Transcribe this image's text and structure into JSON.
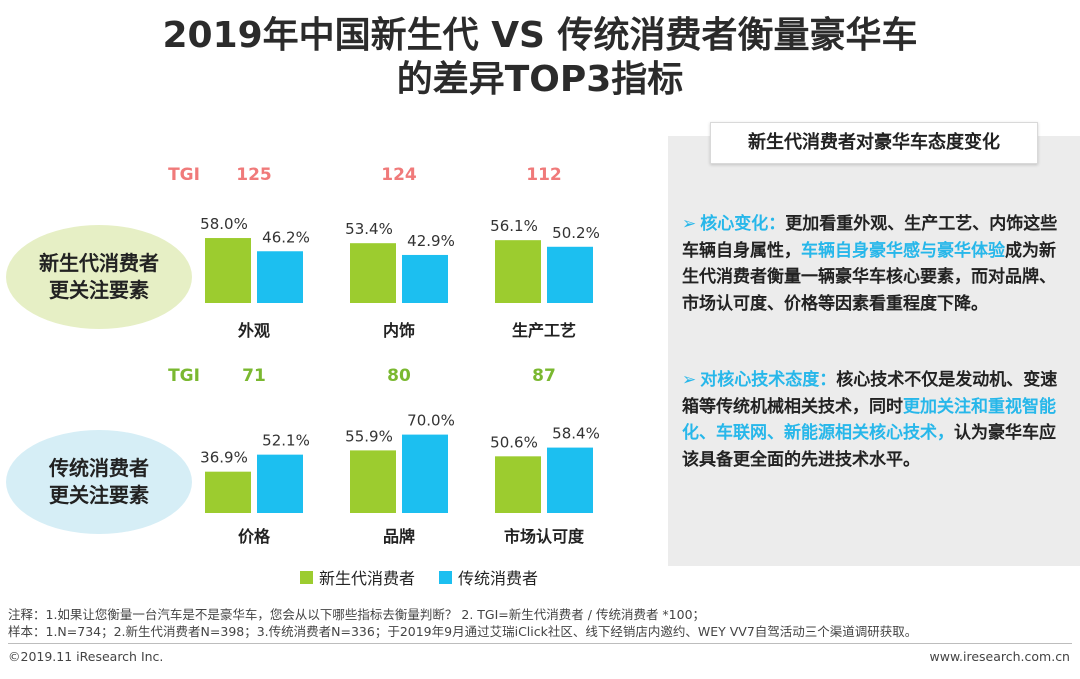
{
  "title": {
    "line1": "2019年中国新生代 VS 传统消费者衡量豪华车",
    "line2": "的差异TOP3指标"
  },
  "row_labels": [
    {
      "line1": "新生代消费者",
      "line2": "更关注要素"
    },
    {
      "line1": "传统消费者",
      "line2": "更关注要素"
    }
  ],
  "colors": {
    "new_gen": "#9ccc2f",
    "traditional": "#1cbff0",
    "tgi_row1": "#f07a7a",
    "tgi_row2": "#7ab830",
    "highlight": "#27b7ea"
  },
  "chart_data": [
    {
      "type": "bar",
      "group": "新生代消费者更关注要素",
      "tgi_label": "TGI",
      "categories": [
        "外观",
        "内饰",
        "生产工艺"
      ],
      "tgi": [
        125,
        124,
        112
      ],
      "series": [
        {
          "name": "新生代消费者",
          "values": [
            58.0,
            53.4,
            56.1
          ]
        },
        {
          "name": "传统消费者",
          "values": [
            46.2,
            42.9,
            50.2
          ]
        }
      ],
      "unit": "%",
      "ylim": [
        0,
        100
      ]
    },
    {
      "type": "bar",
      "group": "传统消费者更关注要素",
      "tgi_label": "TGI",
      "categories": [
        "价格",
        "品牌",
        "市场认可度"
      ],
      "tgi": [
        71,
        80,
        87
      ],
      "series": [
        {
          "name": "新生代消费者",
          "values": [
            36.9,
            55.9,
            50.6
          ]
        },
        {
          "name": "传统消费者",
          "values": [
            52.1,
            70.0,
            58.4
          ]
        }
      ],
      "unit": "%",
      "ylim": [
        0,
        100
      ]
    }
  ],
  "legend": {
    "new_gen": "新生代消费者",
    "traditional": "传统消费者"
  },
  "panel": {
    "title": "新生代消费者对豪华车态度变化",
    "p1": {
      "bullet": "➢",
      "lead": "核心变化：",
      "text1": "更加看重外观、生产工艺、内饰这些车辆自身属性，",
      "highlight": "车辆自身豪华感与豪华体验",
      "text2": "成为新生代消费者衡量一辆豪华车核心要素，而对品牌、市场认可度、价格等因素看重程度下降。"
    },
    "p2": {
      "bullet": "➢",
      "lead": "对核心技术态度：",
      "text1": "核心技术不仅是发动机、变速箱等传统机械相关技术，同时",
      "highlight": "更加关注和重视智能化、车联网、新能源相关核心技术，",
      "text2": "认为豪华车应该具备更全面的先进技术水平。"
    }
  },
  "notes": {
    "line1": "注释：1.如果让您衡量一台汽车是不是豪华车，您会从以下哪些指标去衡量判断？ 2. TGI=新生代消费者 / 传统消费者 *100；",
    "line2": "样本：1.N=734；2.新生代消费者N=398；3.传统消费者N=336；于2019年9月通过艾瑞iClick社区、线下经销店内邀约、WEY VV7自驾活动三个渠道调研获取。"
  },
  "footer": {
    "left": "©2019.11 iResearch Inc.",
    "right": "www.iresearch.com.cn"
  }
}
